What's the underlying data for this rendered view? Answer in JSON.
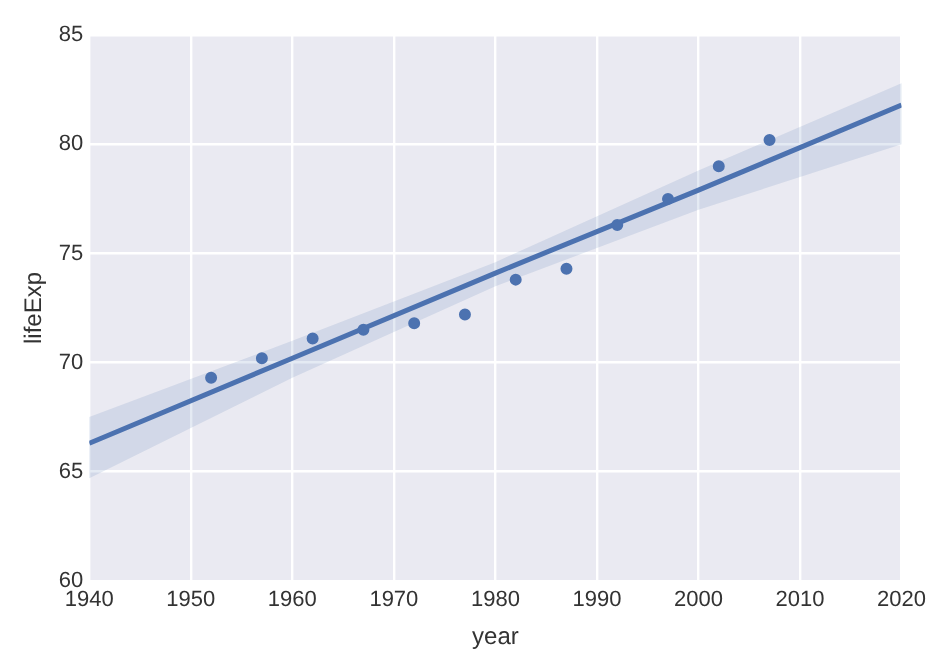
{
  "chart_data": {
    "type": "scatter",
    "xlabel": "year",
    "ylabel": "lifeExp",
    "xlim": [
      1940,
      2020
    ],
    "xticks": [
      1940,
      1950,
      1960,
      1970,
      1980,
      1990,
      2000,
      2010,
      2020
    ],
    "ylim": [
      60,
      85
    ],
    "yticks": [
      60,
      65,
      70,
      75,
      80,
      85
    ],
    "grid": true,
    "legend": false,
    "series": [
      {
        "color": "#4c72b0",
        "marker": "circle",
        "x": [
          1952,
          1957,
          1962,
          1967,
          1972,
          1977,
          1982,
          1987,
          1992,
          1997,
          2002,
          2007
        ],
        "values": [
          69.3,
          70.2,
          71.1,
          71.5,
          71.8,
          72.2,
          73.8,
          74.3,
          76.3,
          77.5,
          79.0,
          80.2
        ]
      },
      {
        "type": "line",
        "color": "#4c72b0",
        "marker": "none",
        "line_style": "solid",
        "x": [
          1940,
          1960,
          1980,
          2000,
          2020
        ],
        "values": [
          66.3,
          70.2,
          74.1,
          77.9,
          81.8
        ],
        "lower": [
          64.7,
          69.3,
          73.5,
          77.0,
          80.0
        ],
        "upper": [
          67.5,
          71.0,
          74.6,
          78.8,
          82.8
        ]
      }
    ]
  }
}
